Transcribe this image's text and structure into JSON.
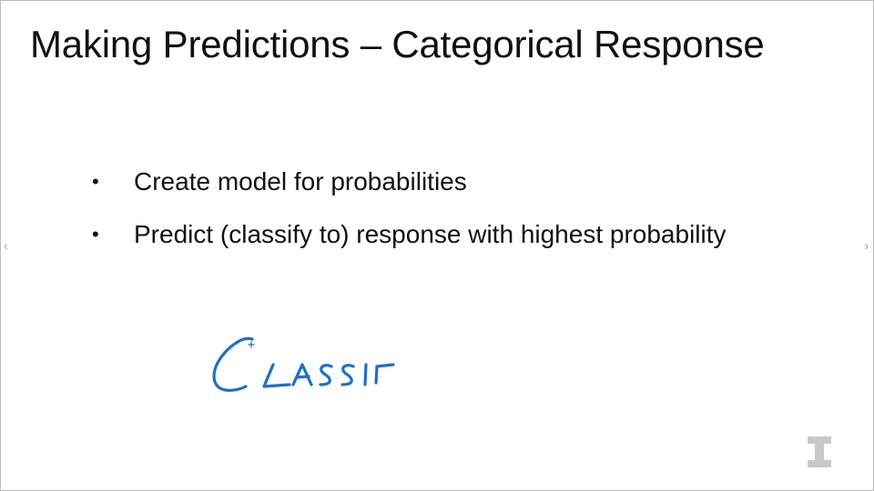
{
  "slide": {
    "title": "Making Predictions – Categorical Response",
    "bullets": [
      {
        "marker": "•",
        "text": "Create model for probabilities"
      },
      {
        "marker": "•",
        "text": "Predict (classify to) response with highest probability"
      }
    ]
  },
  "navigation": {
    "prev_glyph": "‹",
    "next_glyph": "›"
  },
  "annotation": {
    "handwriting": "CLASSIF",
    "ink_color": "#1f6fc4"
  },
  "branding": {
    "logo_icon": "block-i-logo-icon",
    "logo_color": "#c8c8c8"
  }
}
